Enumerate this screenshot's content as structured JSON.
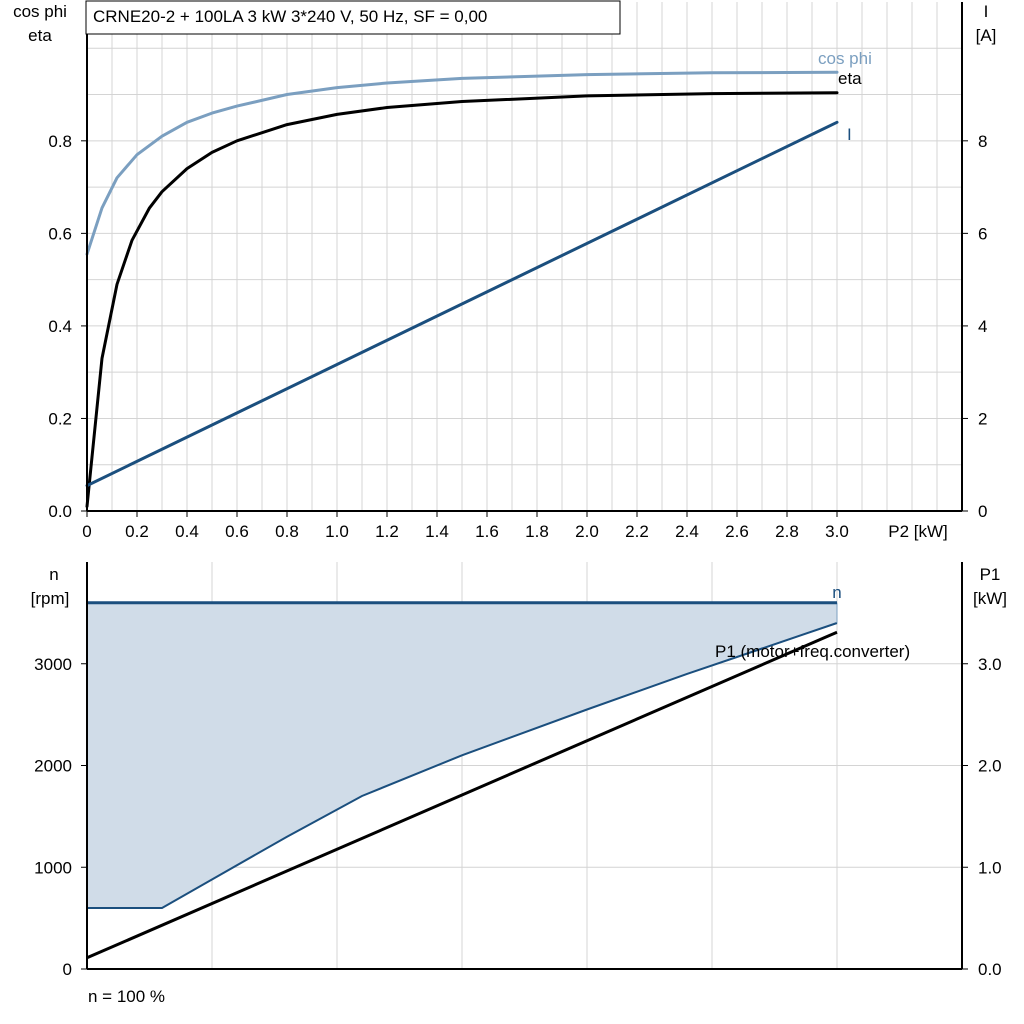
{
  "chart_data": [
    {
      "type": "line",
      "title": "CRNE20-2 + 100LA   3 kW   3*240 V, 50 Hz, SF = 0,00",
      "xlabel": "P2 [kW]",
      "ylabel_left": [
        "cos phi",
        "eta"
      ],
      "ylabel_right": [
        "I",
        "[A]"
      ],
      "xlim": [
        0,
        3.5
      ],
      "ylim_left": [
        0,
        1.1
      ],
      "ylim_right": [
        0,
        11
      ],
      "x_ticks": [
        "0",
        "0.2",
        "0.4",
        "0.6",
        "0.8",
        "1.0",
        "1.2",
        "1.4",
        "1.6",
        "1.8",
        "2.0",
        "2.2",
        "2.4",
        "2.6",
        "2.8",
        "3.0"
      ],
      "y_ticks_left": [
        "0.0",
        "0.2",
        "0.4",
        "0.6",
        "0.8"
      ],
      "y_ticks_right": [
        "0",
        "2",
        "4",
        "6",
        "8"
      ],
      "grid": true,
      "series": [
        {
          "name": "cos phi",
          "axis": "left",
          "color": "#7b9fc0",
          "x": [
            0,
            0.06,
            0.12,
            0.2,
            0.3,
            0.4,
            0.5,
            0.6,
            0.8,
            1.0,
            1.2,
            1.5,
            2.0,
            2.5,
            3.0
          ],
          "y": [
            0.555,
            0.655,
            0.72,
            0.77,
            0.81,
            0.84,
            0.86,
            0.875,
            0.9,
            0.915,
            0.925,
            0.935,
            0.943,
            0.947,
            0.948
          ]
        },
        {
          "name": "eta",
          "axis": "left",
          "color": "#000000",
          "x": [
            0,
            0.06,
            0.12,
            0.18,
            0.25,
            0.3,
            0.4,
            0.5,
            0.6,
            0.8,
            1.0,
            1.2,
            1.5,
            2.0,
            2.5,
            3.0
          ],
          "y": [
            0.01,
            0.33,
            0.49,
            0.585,
            0.655,
            0.69,
            0.74,
            0.775,
            0.8,
            0.835,
            0.857,
            0.872,
            0.885,
            0.897,
            0.902,
            0.904
          ]
        },
        {
          "name": "I",
          "axis": "right",
          "color": "#1b4f7e",
          "x": [
            0,
            3.0
          ],
          "y": [
            0.55,
            8.4
          ]
        }
      ]
    },
    {
      "type": "area",
      "xlim": [
        0,
        3.5
      ],
      "ylabel_left": [
        "n",
        "[rpm]"
      ],
      "ylabel_right": [
        "P1",
        "[kW]"
      ],
      "ylim_left": [
        0,
        4000
      ],
      "ylim_right": [
        0,
        4.0
      ],
      "y_ticks_left": [
        "0",
        "1000",
        "2000",
        "3000"
      ],
      "y_ticks_right": [
        "0.0",
        "1.0",
        "2.0",
        "3.0"
      ],
      "grid": true,
      "note": "n = 100 %",
      "series": [
        {
          "name": "n",
          "axis": "left",
          "color": "#1b4f7e",
          "x": [
            0,
            3.0
          ],
          "y": [
            3600,
            3600
          ]
        },
        {
          "name": "",
          "axis": "left",
          "color": "#1b4f7e",
          "x": [
            0,
            0.3,
            0.8,
            1.1,
            1.5,
            2.0,
            2.4,
            2.7,
            3.0
          ],
          "y": [
            600,
            600,
            1300,
            1700,
            2100,
            2550,
            2900,
            3150,
            3400
          ]
        },
        {
          "name": "P1 (motor+freq.converter)",
          "axis": "right",
          "color": "#000000",
          "x": [
            0,
            3.0
          ],
          "y": [
            0.11,
            3.31
          ]
        }
      ],
      "fill": {
        "color": "#d0dce8",
        "between": [
          "n",
          "lower"
        ]
      }
    }
  ]
}
